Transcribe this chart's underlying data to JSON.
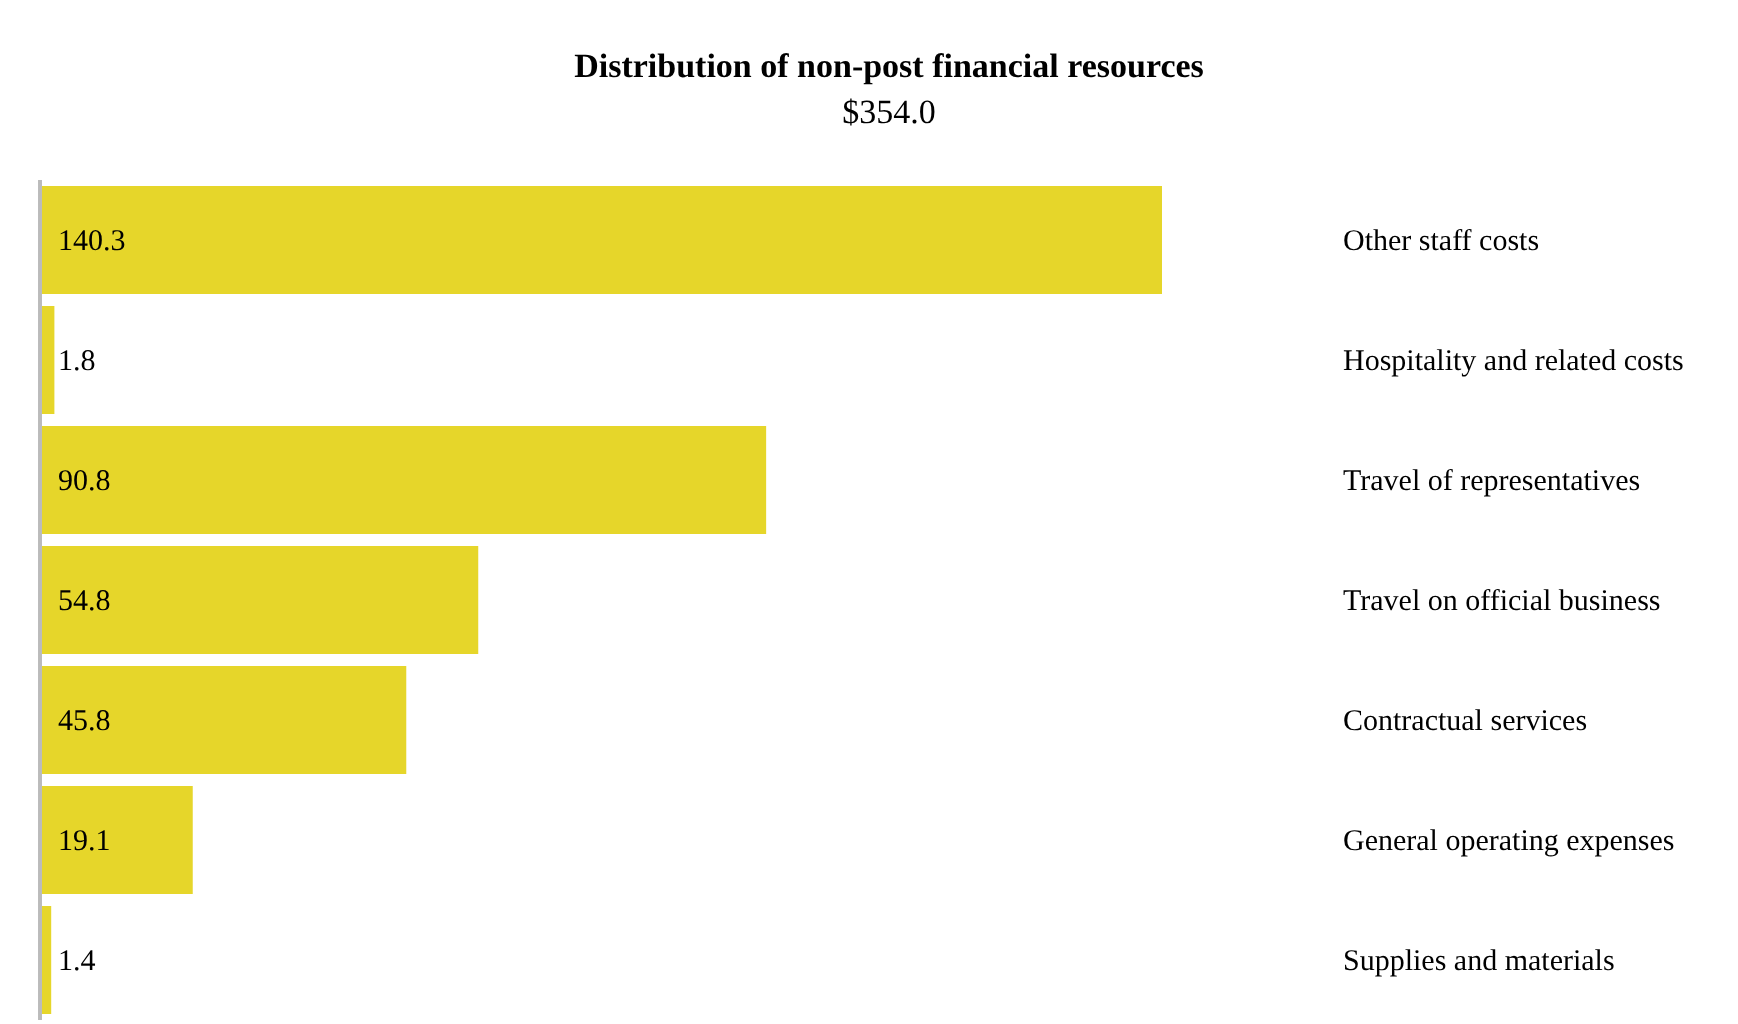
{
  "chart_data": {
    "type": "bar",
    "orientation": "horizontal",
    "title": "Distribution  of non-post financial resources",
    "subtitle": "$354.0",
    "categories": [
      "Other staff costs",
      "Hospitality and related costs",
      "Travel of representatives",
      "Travel on official business",
      "Contractual services",
      "General operating expenses",
      "Supplies and materials"
    ],
    "values": [
      140.3,
      1.8,
      90.8,
      54.8,
      45.8,
      19.1,
      1.4
    ],
    "color": "#e6d62a",
    "data_labels": true
  }
}
